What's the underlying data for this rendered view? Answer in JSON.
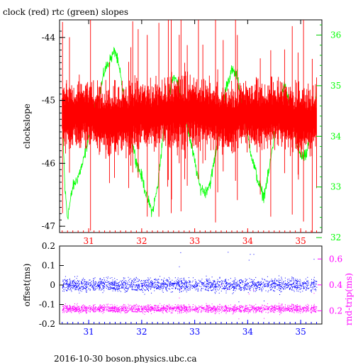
{
  "chart_data": [
    {
      "type": "line",
      "title": "clock (red) rtc (green) slopes",
      "ylabel": "clockslope",
      "ylabel_right": "",
      "xlim": [
        30.45,
        35.4
      ],
      "ylim": [
        -47.1,
        -43.72
      ],
      "ylim_right": [
        32.1,
        36.3
      ],
      "x_ticks": [
        "31",
        "32",
        "33",
        "34",
        "35"
      ],
      "y_ticks": [
        "-47",
        "-46",
        "-45",
        "-44"
      ],
      "y_ticks_right": [
        "32",
        "33",
        "34",
        "35",
        "36"
      ],
      "grid": false,
      "series": [
        {
          "name": "clock",
          "color": "#ff0000",
          "axis": "left",
          "x": [
            30.5,
            30.6,
            30.7,
            30.8,
            30.9,
            31.0,
            31.1,
            31.2,
            31.3,
            31.4,
            31.5,
            31.6,
            31.7,
            31.8,
            31.9,
            32.0,
            32.1,
            32.2,
            32.3,
            32.4,
            32.5,
            32.6,
            32.7,
            32.8,
            32.9,
            33.0,
            33.1,
            33.2,
            33.3,
            33.4,
            33.5,
            33.6,
            33.7,
            33.8,
            33.9,
            34.0,
            34.1,
            34.2,
            34.3,
            34.4,
            34.5,
            34.6,
            34.7,
            34.8,
            34.9,
            35.0,
            35.1,
            35.2,
            35.3
          ],
          "y": [
            -45.2,
            -45.22,
            -45.25,
            -45.23,
            -45.2,
            -45.22,
            -45.28,
            -45.3,
            -45.35,
            -45.32,
            -45.32,
            -45.3,
            -45.28,
            -45.26,
            -45.22,
            -45.2,
            -45.25,
            -45.25,
            -45.22,
            -45.22,
            -45.2,
            -45.2,
            -45.2,
            -45.2,
            -45.18,
            -45.17,
            -45.18,
            -45.2,
            -45.22,
            -45.25,
            -45.28,
            -45.3,
            -45.3,
            -45.25,
            -45.22,
            -45.22,
            -45.22,
            -45.25,
            -45.25,
            -45.25,
            -45.2,
            -45.22,
            -45.25,
            -45.28,
            -45.3,
            -45.3,
            -45.3,
            -45.3,
            -45.3
          ]
        },
        {
          "name": "rtc",
          "color": "#00ff00",
          "axis": "right",
          "x": [
            30.5,
            30.55,
            30.6,
            30.7,
            30.8,
            30.9,
            31.0,
            31.1,
            31.2,
            31.3,
            31.4,
            31.5,
            31.6,
            31.7,
            31.8,
            31.9,
            32.0,
            32.1,
            32.2,
            32.3,
            32.4,
            32.5,
            32.6,
            32.7,
            32.8,
            32.9,
            33.0,
            33.1,
            33.2,
            33.3,
            33.4,
            33.5,
            33.6,
            33.7,
            33.8,
            33.9,
            34.0,
            34.1,
            34.2,
            34.3,
            34.4,
            34.5,
            34.6,
            34.7,
            34.8,
            34.9,
            35.0,
            35.1,
            35.2,
            35.3
          ],
          "y": [
            34.5,
            33.0,
            32.4,
            33.0,
            33.2,
            33.5,
            34.0,
            34.5,
            34.8,
            35.3,
            35.5,
            35.7,
            35.2,
            34.5,
            34.0,
            33.5,
            33.2,
            32.8,
            32.5,
            33.0,
            34.0,
            34.8,
            35.2,
            35.0,
            34.5,
            34.0,
            33.5,
            33.0,
            32.9,
            33.1,
            33.7,
            34.5,
            35.0,
            35.3,
            35.2,
            34.6,
            34.0,
            33.5,
            33.1,
            32.8,
            33.3,
            34.0,
            34.7,
            35.0,
            34.6,
            34.0,
            33.6,
            33.6,
            34.2,
            34.8
          ]
        }
      ]
    },
    {
      "type": "scatter",
      "xlim": [
        30.45,
        35.4
      ],
      "ylim": [
        -0.2,
        0.2
      ],
      "ylim_right": [
        0.098,
        0.7
      ],
      "ylabel": "offset(ms)",
      "ylabel_right": "rnd-trip(ms)",
      "x_ticks": [
        "31",
        "32",
        "33",
        "34",
        "35"
      ],
      "y_ticks": [
        "-0.2",
        "-0.1",
        "0",
        "0.1",
        "0.2"
      ],
      "y_ticks_right": [
        "0.2",
        "0.4",
        "0.6"
      ],
      "grid": false,
      "series": [
        {
          "name": "offset",
          "color": "#0000ff",
          "axis": "left",
          "x_range": [
            30.5,
            35.3
          ],
          "center": 0.0,
          "spread": 0.05
        },
        {
          "name": "rnd-trip",
          "color": "#ff00ff",
          "axis": "right",
          "x_range": [
            30.5,
            35.3
          ],
          "center": 0.215,
          "spread": 0.045
        }
      ]
    }
  ],
  "footer": "2016-10-30 boson.physics.ubc.ca"
}
